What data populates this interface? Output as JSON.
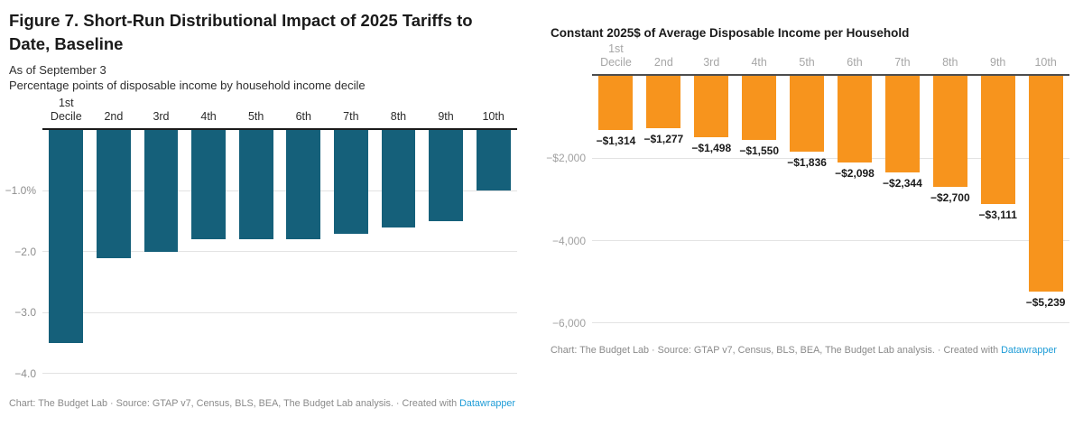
{
  "theme": {
    "background": "#ffffff",
    "link_color": "#1e9cd7",
    "muted_text_color": "#8a8a8a",
    "gridline_color": "#e3e3e3"
  },
  "chart_data": [
    {
      "type": "bar",
      "title": "Figure 7. Short-Run Distributional Impact of 2025 Tariffs to Date, Baseline",
      "title_lines": [
        "Figure 7. Short-Run Distributional Impact of 2025 Tariffs to",
        "Date, Baseline"
      ],
      "subtitle": "As of September 3",
      "axis_note": "Percentage points of disposable income by household income decile",
      "ylabel": "Percentage points of disposable income",
      "xlabel": "Household income decile",
      "categories": [
        "1st\nDecile",
        "2nd",
        "3rd",
        "4th",
        "5th",
        "6th",
        "7th",
        "8th",
        "9th",
        "10th"
      ],
      "values": [
        -3.5,
        -2.1,
        -2.0,
        -1.8,
        -1.8,
        -1.8,
        -1.7,
        -1.6,
        -1.5,
        -1.0
      ],
      "data_labels": null,
      "y_ticks": [
        {
          "value": -1.0,
          "label": "−1.0%"
        },
        {
          "value": -2.0,
          "label": "−2.0"
        },
        {
          "value": -3.0,
          "label": "−3.0"
        },
        {
          "value": -4.0,
          "label": "−4.0"
        }
      ],
      "ylim": [
        -4.2,
        0
      ],
      "grid": true,
      "legend": false,
      "bar_color": "#15607a",
      "axis_color": "#1a1a1a",
      "x_label_color": "#2b2b2b",
      "tick_label_color": "#8e8e8e",
      "footer_prefix": "Chart: The Budget Lab · Source: GTAP v7, Census, BLS, BEA, The Budget Lab analysis. · Created with ",
      "footer_link": "Datawrapper"
    },
    {
      "type": "bar",
      "title": "Constant 2025$ of Average Disposable Income per Household",
      "title_lines": [
        "Constant 2025$ of Average Disposable Income per Household"
      ],
      "subtitle": "",
      "axis_note": "",
      "ylabel": "Constant 2025 dollars of average disposable income",
      "xlabel": "Household income decile",
      "categories": [
        "1st\nDecile",
        "2nd",
        "3rd",
        "4th",
        "5th",
        "6th",
        "7th",
        "8th",
        "9th",
        "10th"
      ],
      "values": [
        -1314,
        -1277,
        -1498,
        -1550,
        -1836,
        -2098,
        -2344,
        -2700,
        -3111,
        -5239
      ],
      "data_labels": [
        "−$1,314",
        "−$1,277",
        "−$1,498",
        "−$1,550",
        "−$1,836",
        "−$2,098",
        "−$2,344",
        "−$2,700",
        "−$3,111",
        "−$5,239"
      ],
      "y_ticks": [
        {
          "value": -2000,
          "label": "−$2,000"
        },
        {
          "value": -4000,
          "label": "−4,000"
        },
        {
          "value": -6000,
          "label": "−6,000"
        }
      ],
      "ylim": [
        -6440,
        0
      ],
      "grid": true,
      "legend": false,
      "bar_color": "#f7941d",
      "axis_color": "#4d4d4d",
      "x_label_color": "#a6a6a6",
      "tick_label_color": "#a0a0a0",
      "value_label_color": "#1a1a1a",
      "footer_prefix": "Chart: The Budget Lab · Source: GTAP v7, Census, BLS, BEA, The Budget Lab analysis. · Created with ",
      "footer_link": "Datawrapper"
    }
  ]
}
